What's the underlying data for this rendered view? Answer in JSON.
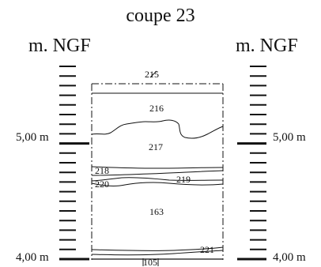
{
  "title": "coupe 23",
  "elevation_unit": "m. NGF",
  "scale_labels": {
    "upper": "5,00 m",
    "lower": "4,00 m"
  },
  "stratigraphic_units": [
    {
      "id": "215"
    },
    {
      "id": "216"
    },
    {
      "id": "217"
    },
    {
      "id": "218"
    },
    {
      "id": "219"
    },
    {
      "id": "220"
    },
    {
      "id": "163"
    },
    {
      "id": "221"
    },
    {
      "id": "105"
    }
  ]
}
